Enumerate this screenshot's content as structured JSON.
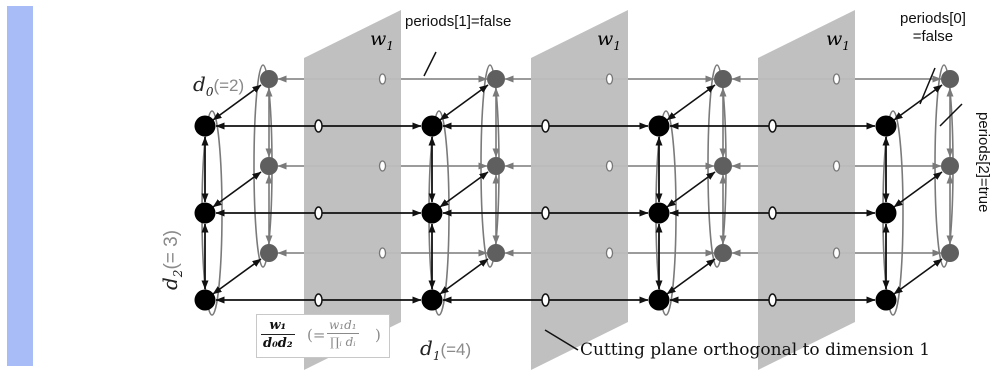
{
  "labels": {
    "periods1": "periods[1]=false",
    "periods0_line1": "periods[0]",
    "periods0_line2": "=false",
    "periods2": "periods[2]=true",
    "w1": "w",
    "w1_sub": "1",
    "cutting_plane": "Cutting plane orthogonal to dimension 1",
    "d0_main": "d",
    "d0_sub": "0",
    "d0_paren": "(=2)",
    "d2_main": "d",
    "d2_sub": "2",
    "d2_paren": "(= 3)",
    "d1_main": "d",
    "d1_sub": "1",
    "d1_paren": "(=4)"
  },
  "formula": {
    "num": "w₁",
    "den": "d₀d₂",
    "alt_open": "(=",
    "alt_num": "w₁d₁",
    "alt_den": "∏ᵢ dᵢ",
    "alt_close": ")"
  },
  "grid": {
    "dimension_0": 2,
    "dimension_1": 4,
    "dimension_2": 3,
    "periods": [
      false,
      false,
      true
    ]
  },
  "colors": {
    "side_bar": "#a8bcf8",
    "front_node": "#000000",
    "back_node": "#5f5f5f",
    "plane": "#bdbdbd",
    "back_edge": "#7a7a7a",
    "front_edge": "#111111"
  }
}
